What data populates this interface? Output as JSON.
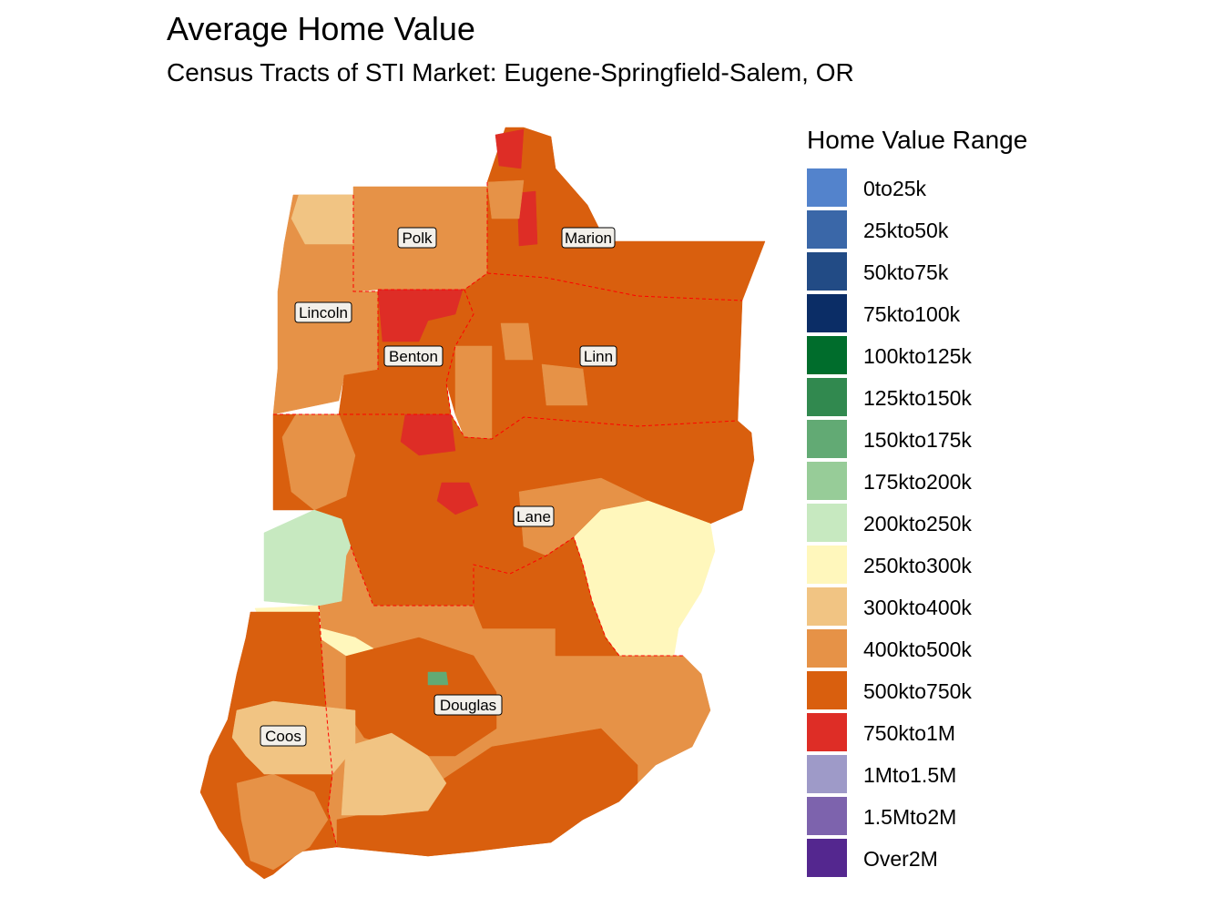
{
  "title": "Average Home Value",
  "subtitle": "Census Tracts of STI Market: Eugene-Springfield-Salem, OR",
  "map": {
    "boundary_color": "#ff0000",
    "counties": [
      {
        "name": "Polk",
        "category": "400kto500k"
      },
      {
        "name": "Marion",
        "category": "500kto750k"
      },
      {
        "name": "Lincoln",
        "category": "400kto500k"
      },
      {
        "name": "Benton",
        "category": "500kto750k"
      },
      {
        "name": "Linn",
        "category": "500kto750k"
      },
      {
        "name": "Lane",
        "category": "500kto750k"
      },
      {
        "name": "Douglas",
        "category": "400kto500k"
      },
      {
        "name": "Coos",
        "category": "500kto750k"
      }
    ]
  },
  "legend": {
    "title": "Home Value Range",
    "items": [
      {
        "label": "0to25k",
        "color": "#5383cc"
      },
      {
        "label": "25kto50k",
        "color": "#3a67a8"
      },
      {
        "label": "50kto75k",
        "color": "#224b85"
      },
      {
        "label": "75kto100k",
        "color": "#0b2d66"
      },
      {
        "label": "100kto125k",
        "color": "#006d2c"
      },
      {
        "label": "125kto150k",
        "color": "#31894f"
      },
      {
        "label": "150kto175k",
        "color": "#62aa74"
      },
      {
        "label": "175kto200k",
        "color": "#97cc98"
      },
      {
        "label": "200kto250k",
        "color": "#c7e9c0"
      },
      {
        "label": "250kto300k",
        "color": "#fff7bc"
      },
      {
        "label": "300kto400k",
        "color": "#f1c483"
      },
      {
        "label": "400kto500k",
        "color": "#e69247"
      },
      {
        "label": "500kto750k",
        "color": "#d95f0e"
      },
      {
        "label": "750kto1M",
        "color": "#de2d26"
      },
      {
        "label": "1Mto1.5M",
        "color": "#9e9ac8"
      },
      {
        "label": "1.5Mto2M",
        "color": "#7d63ad"
      },
      {
        "label": "Over2M",
        "color": "#54278f"
      }
    ]
  }
}
